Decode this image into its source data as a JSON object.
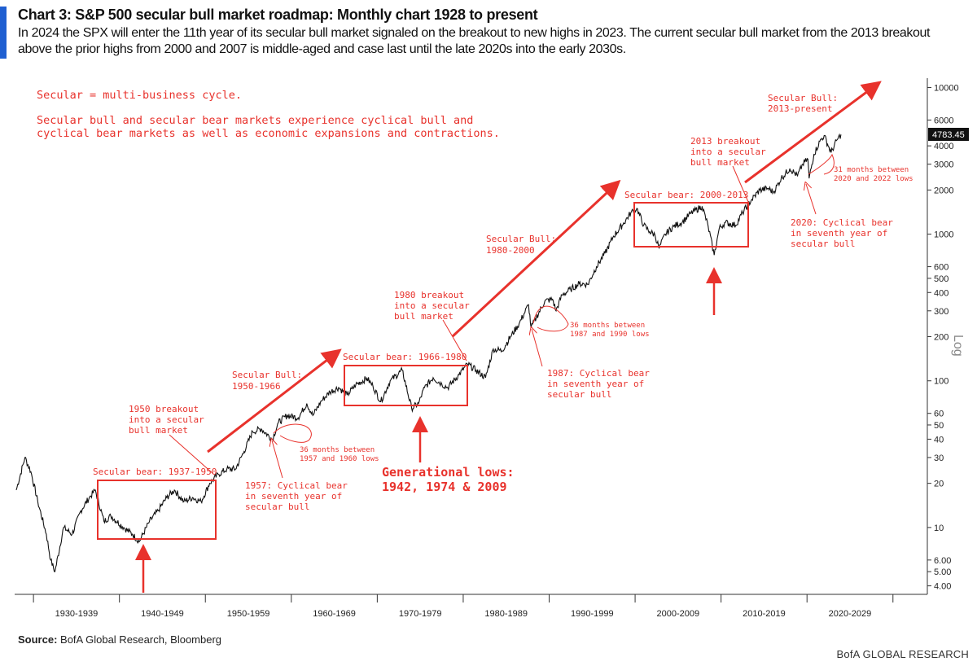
{
  "header": {
    "title": "Chart 3: S&P 500 secular bull market roadmap: Monthly chart 1928 to present",
    "subtitle": "In 2024 the SPX will enter the 11th year of its secular bull market signaled on the breakout to new highs in 2023. The current secular bull market from the 2013 breakout above the prior highs from 2000 and 2007 is middle-aged and case last until the late 2020s into the early 2030s."
  },
  "footer": {
    "source_label": "Source:",
    "source_text": "BofA Global Research, Bloomberg",
    "brand": "BofA GLOBAL RESEARCH"
  },
  "colors": {
    "accent": "#1f5fd1",
    "annotation": "#e8322c",
    "line": "#111111"
  },
  "chart_data": {
    "type": "line",
    "scale": "log",
    "ylim": [
      3.5,
      12500
    ],
    "xlim": [
      1928,
      2034
    ],
    "y_ticks": [
      "10000",
      "6000",
      "4000",
      "3000",
      "2000",
      "1000",
      "600",
      "500",
      "400",
      "300",
      "200",
      "100",
      "60",
      "50",
      "40",
      "30",
      "20",
      "10",
      "6.00",
      "5.00",
      "4.00"
    ],
    "y_tick_values": [
      10000,
      6000,
      4000,
      3000,
      2000,
      1000,
      600,
      500,
      400,
      300,
      200,
      100,
      60,
      50,
      40,
      30,
      20,
      10,
      6,
      5,
      4
    ],
    "last_value_label": "4783.45",
    "last_value": 4783.45,
    "y_axis_label": "Log",
    "x_ticks": [
      "1930-1939",
      "1940-1949",
      "1950-1959",
      "1960-1969",
      "1970-1979",
      "1980-1989",
      "1990-1999",
      "2000-2009",
      "2010-2019",
      "2020-2029"
    ],
    "series": [
      {
        "x": [
          1928.0,
          1929.0,
          1929.7,
          1930.5,
          1931.5,
          1932.0,
          1932.5,
          1933.5,
          1934.5,
          1935.5,
          1936.5,
          1937.2,
          1938.2,
          1939.0,
          1940.5,
          1941.5,
          1942.3,
          1943.5,
          1944.5,
          1945.5,
          1946.4,
          1947.5,
          1948.5,
          1949.5,
          1950.5,
          1951.5,
          1952.5,
          1953.5,
          1954.5,
          1955.5,
          1956.5,
          1957.8,
          1958.5,
          1959.5,
          1960.8,
          1961.8,
          1962.5,
          1963.5,
          1964.5,
          1965.5,
          1966.5,
          1967.5,
          1968.8,
          1969.5,
          1970.4,
          1971.5,
          1972.9,
          1974.0,
          1974.8,
          1975.5,
          1976.5,
          1977.5,
          1978.2,
          1979.5,
          1980.5,
          1981.5,
          1982.6,
          1983.5,
          1984.5,
          1985.5,
          1986.5,
          1987.6,
          1987.9,
          1988.5,
          1989.5,
          1990.4,
          1990.8,
          1991.5,
          1992.5,
          1993.5,
          1994.5,
          1995.5,
          1996.5,
          1997.5,
          1998.5,
          1999.5,
          2000.2,
          2001.0,
          2001.7,
          2002.3,
          2002.8,
          2003.5,
          2004.5,
          2005.5,
          2006.5,
          2007.8,
          2008.5,
          2009.2,
          2009.8,
          2010.5,
          2011.7,
          2012.5,
          2013.5,
          2014.5,
          2015.5,
          2016.1,
          2017.0,
          2018.0,
          2018.9,
          2019.5,
          2020.1,
          2020.25,
          2020.8,
          2021.5,
          2022.0,
          2022.8,
          2023.5,
          2023.95
        ],
        "y": [
          18,
          30,
          24,
          15,
          9,
          6,
          5,
          10,
          9,
          13,
          16,
          18,
          11,
          12,
          10,
          9,
          8,
          11,
          13,
          16,
          18,
          15,
          16,
          15,
          20,
          23,
          25,
          25,
          33,
          45,
          47,
          40,
          52,
          58,
          56,
          70,
          58,
          73,
          84,
          90,
          80,
          94,
          104,
          92,
          72,
          100,
          118,
          65,
          70,
          90,
          105,
          95,
          90,
          110,
          130,
          118,
          105,
          165,
          160,
          200,
          245,
          330,
          230,
          270,
          350,
          360,
          300,
          385,
          420,
          460,
          455,
          600,
          740,
          970,
          1150,
          1400,
          1500,
          1150,
          1040,
          990,
          800,
          1000,
          1130,
          1210,
          1390,
          1550,
          1130,
          720,
          1100,
          1200,
          1150,
          1400,
          1700,
          2000,
          2050,
          1930,
          2400,
          2800,
          2500,
          3000,
          3250,
          2400,
          3500,
          4300,
          4700,
          3600,
          4400,
          4783
        ]
      }
    ]
  },
  "annotations": {
    "definition_1": "Secular = multi-business cycle.",
    "definition_2a": "Secular bull and secular bear markets experience cyclical bull and",
    "definition_2b": "cyclical bear markets as well as economic expansions and contractions.",
    "bear_1937": "Secular bear: 1937-1950",
    "bear_1966": "Secular bear: 1966-1980",
    "bear_2000": "Secular bear: 2000-2013",
    "bull_1950_a": "Secular Bull:",
    "bull_1950_b": "1950-1966",
    "bull_1980_a": "Secular Bull:",
    "bull_1980_b": "1980-2000",
    "bull_2013_a": "Secular Bull:",
    "bull_2013_b": "2013-present",
    "breakout_1950_a": "1950 breakout",
    "breakout_1950_b": "into a secular",
    "breakout_1950_c": "bull market",
    "breakout_1980_a": "1980 breakout",
    "breakout_1980_b": "into a secular",
    "breakout_1980_c": "bull market",
    "breakout_2013_a": "2013 breakout",
    "breakout_2013_b": "into a secular",
    "breakout_2013_c": "bull market",
    "months_1957_a": "36 months between",
    "months_1957_b": "1957 and 1960 lows",
    "months_1987_a": "36 months between",
    "months_1987_b": "1987 and 1990 lows",
    "months_2020_a": "31 months between",
    "months_2020_b": "2020 and 2022 lows",
    "cyc_1957_a": "1957: Cyclical bear",
    "cyc_1957_b": "in seventh year of",
    "cyc_1957_c": "secular bull",
    "cyc_1987_a": "1987: Cyclical bear",
    "cyc_1987_b": "in seventh year of",
    "cyc_1987_c": "secular bull",
    "cyc_2020_a": "2020: Cyclical bear",
    "cyc_2020_b": "in seventh year of",
    "cyc_2020_c": "secular bull",
    "gen_lows_a": "Generational lows:",
    "gen_lows_b": "1942, 1974 & 2009"
  }
}
